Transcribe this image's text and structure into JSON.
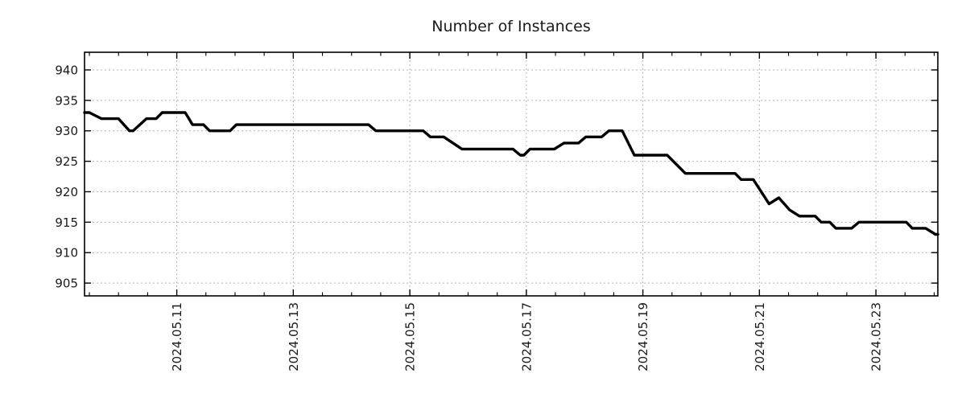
{
  "title": "Number of Instances",
  "chart_data": {
    "type": "line",
    "title": "Number of Instances",
    "xlabel": "",
    "ylabel": "",
    "grid": true,
    "legend": false,
    "line_color": "#000000",
    "ylim": [
      902.9,
      942.9
    ],
    "y_ticks": [
      905,
      910,
      915,
      920,
      925,
      930,
      935,
      940
    ],
    "x_range": [
      "2024.05.09 10:00",
      "2024.05.24 01:30"
    ],
    "x_major_ticks": [
      "2024.05.11",
      "2024.05.13",
      "2024.05.15",
      "2024.05.17",
      "2024.05.19",
      "2024.05.21",
      "2024.05.23"
    ],
    "x_minor_tick_hours": 12,
    "series": [
      {
        "name": "instances",
        "color": "#000000",
        "points": [
          [
            "2024.05.09 10:00",
            933
          ],
          [
            "2024.05.09 12:00",
            933
          ],
          [
            "2024.05.09 17:00",
            932
          ],
          [
            "2024.05.10 00:00",
            932
          ],
          [
            "2024.05.10 04:30",
            930
          ],
          [
            "2024.05.10 06:00",
            930
          ],
          [
            "2024.05.10 11:30",
            932
          ],
          [
            "2024.05.10 15:30",
            932
          ],
          [
            "2024.05.10 18:00",
            933
          ],
          [
            "2024.05.11 03:30",
            933
          ],
          [
            "2024.05.11 06:30",
            931
          ],
          [
            "2024.05.11 11:00",
            931
          ],
          [
            "2024.05.11 13:30",
            930
          ],
          [
            "2024.05.11 22:00",
            930
          ],
          [
            "2024.05.12 00:30",
            931
          ],
          [
            "2024.05.14 07:00",
            931
          ],
          [
            "2024.05.14 10:00",
            930
          ],
          [
            "2024.05.15 05:30",
            930
          ],
          [
            "2024.05.15 08:30",
            929
          ],
          [
            "2024.05.15 14:00",
            929
          ],
          [
            "2024.05.15 21:30",
            927
          ],
          [
            "2024.05.16 18:30",
            927
          ],
          [
            "2024.05.16 21:30",
            926
          ],
          [
            "2024.05.16 23:00",
            926
          ],
          [
            "2024.05.17 01:30",
            927
          ],
          [
            "2024.05.17 11:30",
            927
          ],
          [
            "2024.05.17 15:30",
            928
          ],
          [
            "2024.05.17 21:30",
            928
          ],
          [
            "2024.05.18 00:30",
            929
          ],
          [
            "2024.05.18 07:00",
            929
          ],
          [
            "2024.05.18 10:00",
            930
          ],
          [
            "2024.05.18 15:30",
            930
          ],
          [
            "2024.05.18 20:30",
            926
          ],
          [
            "2024.05.19 10:00",
            926
          ],
          [
            "2024.05.19 17:30",
            923
          ],
          [
            "2024.05.20 14:00",
            923
          ],
          [
            "2024.05.20 16:30",
            922
          ],
          [
            "2024.05.20 21:30",
            922
          ],
          [
            "2024.05.21 04:00",
            918
          ],
          [
            "2024.05.21 08:00",
            919
          ],
          [
            "2024.05.21 12:30",
            917
          ],
          [
            "2024.05.21 16:30",
            916
          ],
          [
            "2024.05.21 23:00",
            916
          ],
          [
            "2024.05.22 01:30",
            915
          ],
          [
            "2024.05.22 05:00",
            915
          ],
          [
            "2024.05.22 07:30",
            914
          ],
          [
            "2024.05.22 14:00",
            914
          ],
          [
            "2024.05.22 17:00",
            915
          ],
          [
            "2024.05.23 12:30",
            915
          ],
          [
            "2024.05.23 15:00",
            914
          ],
          [
            "2024.05.23 20:30",
            914
          ],
          [
            "2024.05.24 00:30",
            913
          ],
          [
            "2024.05.24 01:30",
            913
          ]
        ]
      }
    ]
  }
}
